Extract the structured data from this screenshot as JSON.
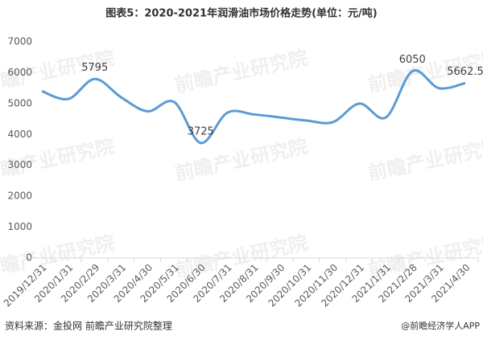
{
  "chart_data": {
    "type": "line",
    "title": "图表5：2020-2021年润滑油市场价格走势(单位：元/吨)",
    "categories": [
      "2019/12/31",
      "2020/1/31",
      "2020/2/29",
      "2020/3/31",
      "2020/4/30",
      "2020/5/31",
      "2020/6/30",
      "2020/7/31",
      "2020/8/31",
      "2020/9/30",
      "2020/10/31",
      "2020/11/30",
      "2020/12/31",
      "2021/1/31",
      "2021/2/28",
      "2021/3/31",
      "2021/4/30"
    ],
    "series": [
      {
        "name": "润滑油市场价格",
        "color": "#5b9bd5",
        "values": [
          5400,
          5150,
          5795,
          5200,
          4750,
          5050,
          3725,
          4700,
          4650,
          4550,
          4450,
          4400,
          5000,
          4550,
          6050,
          5500,
          5662.5
        ],
        "value_labels": [
          null,
          null,
          "5795",
          null,
          null,
          null,
          "3725",
          null,
          null,
          null,
          null,
          null,
          null,
          null,
          "6050",
          null,
          "5662.5"
        ]
      }
    ],
    "ylim": [
      0,
      7000
    ],
    "yticks": [
      0,
      1000,
      2000,
      3000,
      4000,
      5000,
      6000,
      7000
    ],
    "grid": false,
    "source": "资料来源：金投网 前瞻产业研究院整理",
    "brand": "@前瞻经济学人APP",
    "watermark": "前瞻产业研究院"
  }
}
